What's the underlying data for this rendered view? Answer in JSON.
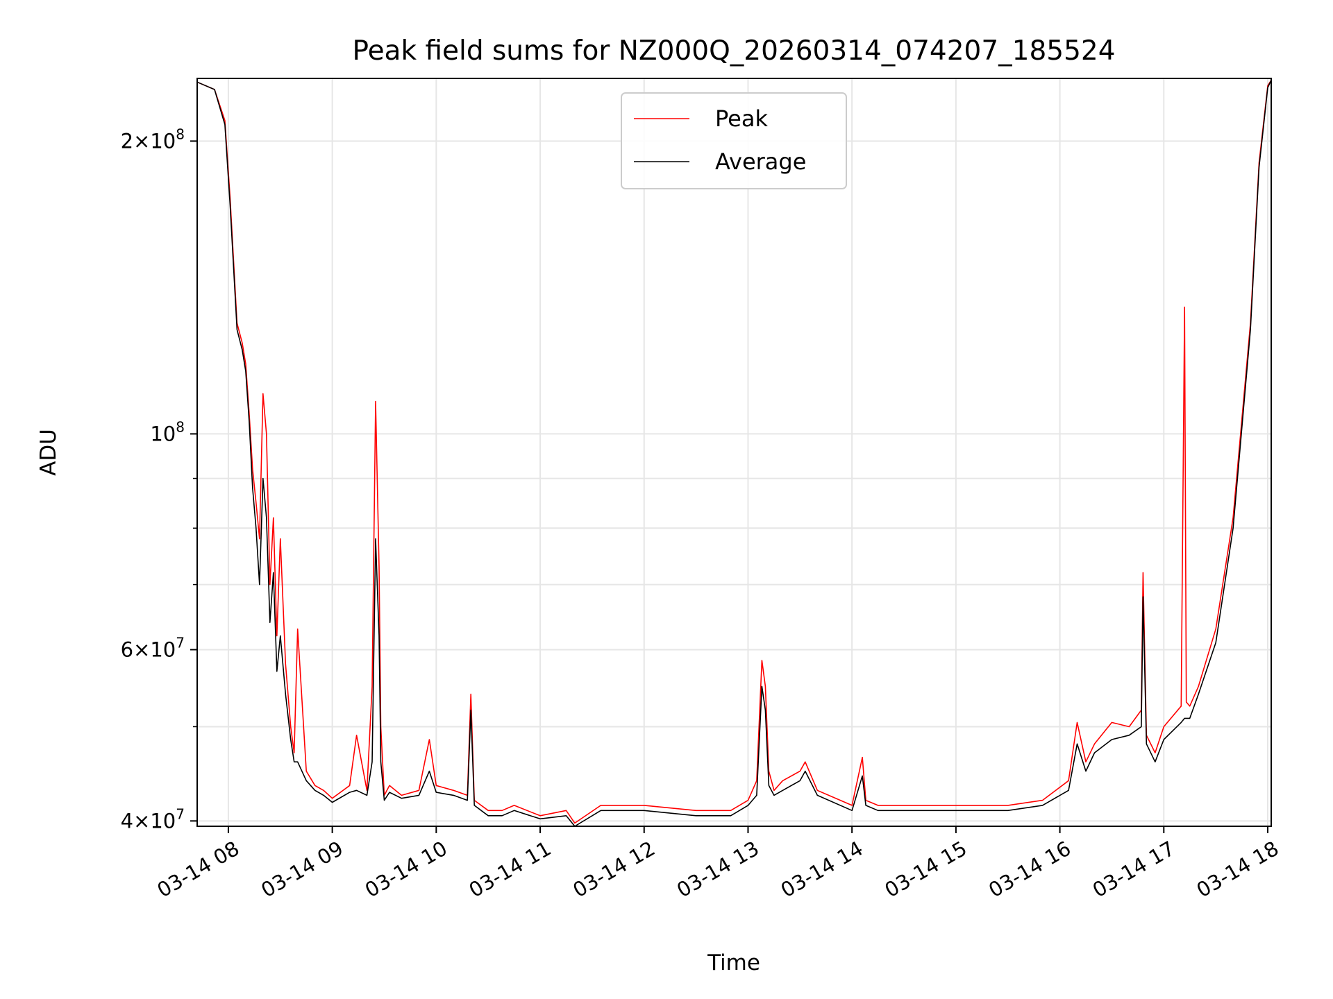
{
  "chart_data": {
    "type": "line",
    "title": "Peak field sums for NZ000Q_20260314_074207_185524",
    "xlabel": "Time",
    "ylabel": "ADU",
    "yscale": "log",
    "xlim": [
      "2026-03-14 07:42",
      "2026-03-14 18:02"
    ],
    "ylim": [
      39500000,
      232000000
    ],
    "grid": true,
    "legend": "top-center",
    "x_ticks": [
      {
        "t": "2026-03-14 08:00",
        "label": "03-14 08"
      },
      {
        "t": "2026-03-14 09:00",
        "label": "03-14 09"
      },
      {
        "t": "2026-03-14 10:00",
        "label": "03-14 10"
      },
      {
        "t": "2026-03-14 11:00",
        "label": "03-14 11"
      },
      {
        "t": "2026-03-14 12:00",
        "label": "03-14 12"
      },
      {
        "t": "2026-03-14 13:00",
        "label": "03-14 13"
      },
      {
        "t": "2026-03-14 14:00",
        "label": "03-14 14"
      },
      {
        "t": "2026-03-14 15:00",
        "label": "03-14 15"
      },
      {
        "t": "2026-03-14 16:00",
        "label": "03-14 16"
      },
      {
        "t": "2026-03-14 17:00",
        "label": "03-14 17"
      },
      {
        "t": "2026-03-14 18:00",
        "label": "03-14 18"
      }
    ],
    "y_ticks_major": [
      {
        "value": 40000000,
        "mantissa": "4",
        "exp": "7"
      },
      {
        "value": 60000000,
        "mantissa": "6",
        "exp": "7"
      },
      {
        "value": 100000000,
        "mantissa": "",
        "exp": "8"
      },
      {
        "value": 200000000,
        "mantissa": "2",
        "exp": "8"
      }
    ],
    "y_ticks_minor": [
      50000000,
      70000000,
      80000000,
      90000000
    ],
    "colors": {
      "Peak": "#ff0000",
      "Average": "#000000"
    },
    "series": [
      {
        "name": "Peak",
        "x": [
          "2026-03-14 07:42",
          "2026-03-14 07:52",
          "2026-03-14 07:58",
          "2026-03-14 08:01",
          "2026-03-14 08:05",
          "2026-03-14 08:08",
          "2026-03-14 08:10",
          "2026-03-14 08:12",
          "2026-03-14 08:14",
          "2026-03-14 08:16",
          "2026-03-14 08:18",
          "2026-03-14 08:20",
          "2026-03-14 08:22",
          "2026-03-14 08:24",
          "2026-03-14 08:26",
          "2026-03-14 08:28",
          "2026-03-14 08:30",
          "2026-03-14 08:33",
          "2026-03-14 08:36",
          "2026-03-14 08:38",
          "2026-03-14 08:40",
          "2026-03-14 08:45",
          "2026-03-14 08:50",
          "2026-03-14 08:55",
          "2026-03-14 09:00",
          "2026-03-14 09:10",
          "2026-03-14 09:14",
          "2026-03-14 09:20",
          "2026-03-14 09:23",
          "2026-03-14 09:25",
          "2026-03-14 09:27",
          "2026-03-14 09:28",
          "2026-03-14 09:30",
          "2026-03-14 09:33",
          "2026-03-14 09:40",
          "2026-03-14 09:50",
          "2026-03-14 09:56",
          "2026-03-14 10:00",
          "2026-03-14 10:10",
          "2026-03-14 10:18",
          "2026-03-14 10:20",
          "2026-03-14 10:22",
          "2026-03-14 10:30",
          "2026-03-14 10:38",
          "2026-03-14 10:45",
          "2026-03-14 11:00",
          "2026-03-14 11:15",
          "2026-03-14 11:20",
          "2026-03-14 11:35",
          "2026-03-14 12:00",
          "2026-03-14 12:30",
          "2026-03-14 12:50",
          "2026-03-14 13:00",
          "2026-03-14 13:05",
          "2026-03-14 13:08",
          "2026-03-14 13:10",
          "2026-03-14 13:12",
          "2026-03-14 13:15",
          "2026-03-14 13:20",
          "2026-03-14 13:30",
          "2026-03-14 13:33",
          "2026-03-14 13:40",
          "2026-03-14 14:00",
          "2026-03-14 14:06",
          "2026-03-14 14:08",
          "2026-03-14 14:15",
          "2026-03-14 14:30",
          "2026-03-14 15:00",
          "2026-03-14 15:30",
          "2026-03-14 15:50",
          "2026-03-14 16:05",
          "2026-03-14 16:10",
          "2026-03-14 16:15",
          "2026-03-14 16:20",
          "2026-03-14 16:30",
          "2026-03-14 16:40",
          "2026-03-14 16:47",
          "2026-03-14 16:48",
          "2026-03-14 16:50",
          "2026-03-14 16:55",
          "2026-03-14 17:00",
          "2026-03-14 17:10",
          "2026-03-14 17:12",
          "2026-03-14 17:13",
          "2026-03-14 17:15",
          "2026-03-14 17:20",
          "2026-03-14 17:30",
          "2026-03-14 17:40",
          "2026-03-14 17:50",
          "2026-03-14 17:55",
          "2026-03-14 18:00",
          "2026-03-14 18:02"
        ],
        "values": [
          230000000,
          226000000,
          210000000,
          175000000,
          130000000,
          124000000,
          118000000,
          105000000,
          92000000,
          85000000,
          78000000,
          110000000,
          100000000,
          70000000,
          82000000,
          62000000,
          78000000,
          58000000,
          50000000,
          47000000,
          63000000,
          45000000,
          43500000,
          43000000,
          42200000,
          43500000,
          49000000,
          43000000,
          55000000,
          108000000,
          73000000,
          50000000,
          42500000,
          43500000,
          42500000,
          43000000,
          48500000,
          43500000,
          43000000,
          42500000,
          54000000,
          42000000,
          41000000,
          41000000,
          41500000,
          40500000,
          41000000,
          39800000,
          41500000,
          41500000,
          41000000,
          41000000,
          42000000,
          44000000,
          58500000,
          55000000,
          45000000,
          43000000,
          44000000,
          45000000,
          46000000,
          43000000,
          41500000,
          46500000,
          42000000,
          41500000,
          41500000,
          41500000,
          41500000,
          42000000,
          44000000,
          50500000,
          46000000,
          48000000,
          50500000,
          50000000,
          52000000,
          72000000,
          49000000,
          47000000,
          50000000,
          52500000,
          135000000,
          53000000,
          52500000,
          55000000,
          63000000,
          82000000,
          130000000,
          190000000,
          228000000,
          231000000
        ]
      },
      {
        "name": "Average",
        "x": [
          "2026-03-14 07:42",
          "2026-03-14 07:52",
          "2026-03-14 07:58",
          "2026-03-14 08:01",
          "2026-03-14 08:05",
          "2026-03-14 08:08",
          "2026-03-14 08:10",
          "2026-03-14 08:12",
          "2026-03-14 08:14",
          "2026-03-14 08:16",
          "2026-03-14 08:18",
          "2026-03-14 08:20",
          "2026-03-14 08:22",
          "2026-03-14 08:24",
          "2026-03-14 08:26",
          "2026-03-14 08:28",
          "2026-03-14 08:30",
          "2026-03-14 08:33",
          "2026-03-14 08:36",
          "2026-03-14 08:38",
          "2026-03-14 08:40",
          "2026-03-14 08:45",
          "2026-03-14 08:50",
          "2026-03-14 08:55",
          "2026-03-14 09:00",
          "2026-03-14 09:10",
          "2026-03-14 09:14",
          "2026-03-14 09:20",
          "2026-03-14 09:23",
          "2026-03-14 09:25",
          "2026-03-14 09:27",
          "2026-03-14 09:28",
          "2026-03-14 09:30",
          "2026-03-14 09:33",
          "2026-03-14 09:40",
          "2026-03-14 09:50",
          "2026-03-14 09:56",
          "2026-03-14 10:00",
          "2026-03-14 10:10",
          "2026-03-14 10:18",
          "2026-03-14 10:20",
          "2026-03-14 10:22",
          "2026-03-14 10:30",
          "2026-03-14 10:38",
          "2026-03-14 10:45",
          "2026-03-14 11:00",
          "2026-03-14 11:15",
          "2026-03-14 11:20",
          "2026-03-14 11:35",
          "2026-03-14 12:00",
          "2026-03-14 12:30",
          "2026-03-14 12:50",
          "2026-03-14 13:00",
          "2026-03-14 13:05",
          "2026-03-14 13:08",
          "2026-03-14 13:10",
          "2026-03-14 13:12",
          "2026-03-14 13:15",
          "2026-03-14 13:20",
          "2026-03-14 13:30",
          "2026-03-14 13:33",
          "2026-03-14 13:40",
          "2026-03-14 14:00",
          "2026-03-14 14:06",
          "2026-03-14 14:08",
          "2026-03-14 14:15",
          "2026-03-14 14:30",
          "2026-03-14 15:00",
          "2026-03-14 15:30",
          "2026-03-14 15:50",
          "2026-03-14 16:05",
          "2026-03-14 16:10",
          "2026-03-14 16:15",
          "2026-03-14 16:20",
          "2026-03-14 16:30",
          "2026-03-14 16:40",
          "2026-03-14 16:47",
          "2026-03-14 16:48",
          "2026-03-14 16:50",
          "2026-03-14 16:55",
          "2026-03-14 17:00",
          "2026-03-14 17:10",
          "2026-03-14 17:12",
          "2026-03-14 17:13",
          "2026-03-14 17:15",
          "2026-03-14 17:20",
          "2026-03-14 17:30",
          "2026-03-14 17:40",
          "2026-03-14 17:50",
          "2026-03-14 17:55",
          "2026-03-14 18:00",
          "2026-03-14 18:02"
        ],
        "values": [
          230000000,
          226000000,
          208000000,
          172000000,
          128000000,
          122000000,
          116000000,
          103000000,
          88000000,
          80000000,
          70000000,
          90000000,
          82000000,
          64000000,
          72000000,
          57000000,
          62000000,
          54000000,
          48500000,
          46000000,
          46000000,
          44000000,
          43000000,
          42500000,
          41800000,
          42800000,
          43000000,
          42500000,
          46000000,
          78000000,
          62000000,
          46000000,
          42000000,
          42800000,
          42200000,
          42500000,
          45000000,
          42800000,
          42500000,
          42000000,
          52000000,
          41500000,
          40500000,
          40500000,
          41000000,
          40200000,
          40500000,
          39500000,
          41000000,
          41000000,
          40500000,
          40500000,
          41500000,
          42500000,
          55000000,
          52000000,
          43500000,
          42500000,
          43000000,
          44000000,
          45000000,
          42500000,
          41000000,
          44500000,
          41500000,
          41000000,
          41000000,
          41000000,
          41000000,
          41500000,
          43000000,
          48000000,
          45000000,
          47000000,
          48500000,
          49000000,
          50000000,
          68000000,
          48000000,
          46000000,
          48500000,
          50500000,
          51000000,
          51000000,
          51000000,
          54000000,
          61000000,
          80000000,
          128000000,
          188000000,
          227000000,
          231000000
        ]
      }
    ]
  }
}
